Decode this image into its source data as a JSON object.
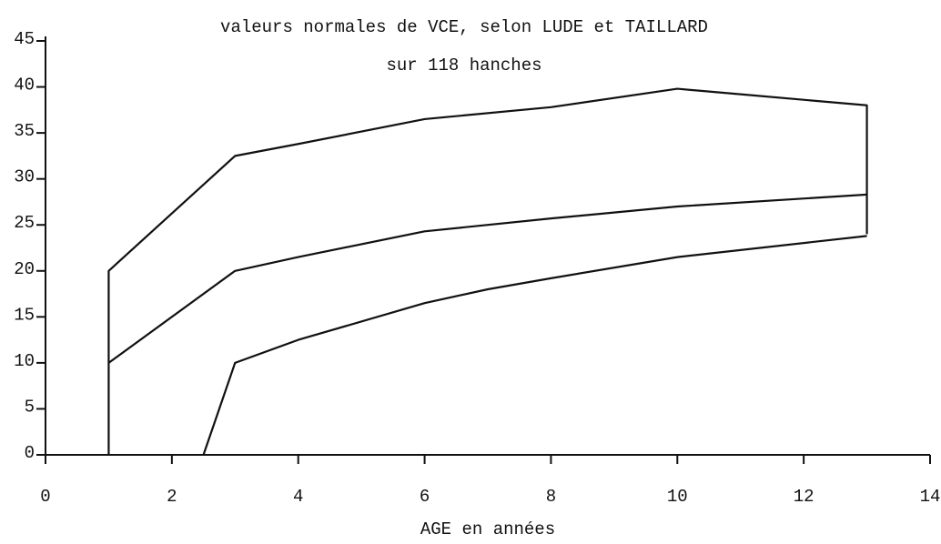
{
  "chart_data": {
    "type": "line",
    "title": "valeurs normales de VCE, selon LUDE et TAILLARD",
    "subtitle": "sur 118 hanches",
    "x_label": "AGE en années",
    "xlim": [
      0,
      14
    ],
    "xticks": [
      0,
      2,
      4,
      6,
      8,
      10,
      12,
      14
    ],
    "ylim": [
      0,
      45
    ],
    "yticks": [
      0,
      5,
      10,
      15,
      20,
      25,
      30,
      35,
      40,
      45
    ],
    "grid": false,
    "series": [
      {
        "color": "#111111",
        "x": [
          1,
          1,
          3,
          4,
          6,
          8,
          10,
          11,
          13,
          13
        ],
        "values": [
          0,
          20,
          32.5,
          33.8,
          36.5,
          37.8,
          39.8,
          39.2,
          38,
          24
        ]
      },
      {
        "color": "#111111",
        "x": [
          1,
          3,
          4,
          6,
          8,
          10,
          13
        ],
        "values": [
          10,
          20,
          21.5,
          24.3,
          25.7,
          27,
          28.3
        ]
      },
      {
        "color": "#111111",
        "x": [
          2.5,
          3,
          4,
          6,
          7,
          8,
          10,
          13
        ],
        "values": [
          0,
          10,
          12.5,
          16.5,
          18,
          19.2,
          21.5,
          23.8
        ]
      }
    ]
  }
}
